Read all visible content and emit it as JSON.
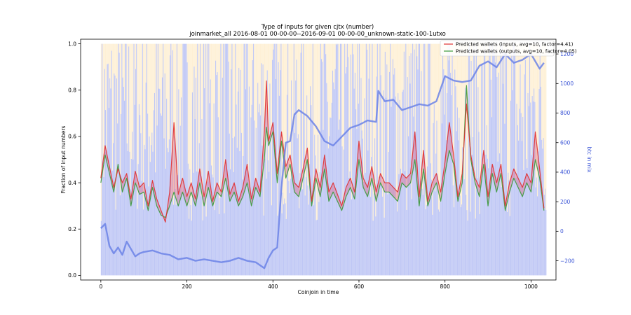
{
  "chart_data": {
    "type": "line",
    "title": "Type of inputs for given cjtx (number)",
    "subtitle": "joinmarket_all 2016-08-01 00-00-00--2016-09-01 00-00-00_unknown-static-100-1utxo",
    "xlabel": "Coinjoin in time",
    "ylabel": "Fraction of input numbers",
    "ylabel_right": "btc in mix",
    "xlim": [
      -47,
      1058
    ],
    "ylim": [
      -0.02,
      1.02
    ],
    "ylim_right": [
      -330,
      1300
    ],
    "x_ticks": [
      "0",
      "200",
      "400",
      "600",
      "800",
      "1000"
    ],
    "y_ticks": [
      "0.0",
      "0.2",
      "0.4",
      "0.6",
      "0.8",
      "1.0"
    ],
    "y_right_ticks": [
      "−200",
      "0",
      "200",
      "400",
      "600",
      "800",
      "1000",
      "1200"
    ],
    "grid": false,
    "legend_position": "top-right",
    "n_transactions": 1035,
    "background_bars": {
      "description": "per-coinjoin stacked fraction bars (blue = fresh inputs, orange = remixed inputs)",
      "colors": [
        "#aab4f2",
        "#fde4b3"
      ]
    },
    "series": [
      {
        "name": "Predicted wallets (inputs, avg=10, factor=4.41)",
        "color": "#e03030",
        "axis": "left",
        "x": [
          0,
          10,
          20,
          30,
          40,
          50,
          60,
          70,
          80,
          90,
          100,
          110,
          120,
          130,
          140,
          150,
          160,
          170,
          180,
          190,
          200,
          210,
          220,
          230,
          240,
          250,
          260,
          270,
          280,
          290,
          300,
          310,
          320,
          330,
          340,
          350,
          360,
          370,
          380,
          385,
          390,
          400,
          410,
          420,
          430,
          440,
          450,
          460,
          470,
          480,
          490,
          500,
          510,
          520,
          530,
          540,
          550,
          560,
          570,
          580,
          590,
          600,
          610,
          620,
          630,
          640,
          650,
          660,
          670,
          680,
          690,
          700,
          710,
          720,
          730,
          740,
          750,
          760,
          770,
          780,
          790,
          800,
          810,
          820,
          830,
          840,
          850,
          860,
          870,
          880,
          890,
          900,
          910,
          920,
          930,
          940,
          950,
          960,
          970,
          980,
          990,
          1000,
          1010,
          1020,
          1030
        ],
        "y": [
          0.42,
          0.56,
          0.47,
          0.38,
          0.46,
          0.4,
          0.44,
          0.33,
          0.45,
          0.38,
          0.4,
          0.3,
          0.41,
          0.33,
          0.28,
          0.23,
          0.36,
          0.66,
          0.35,
          0.42,
          0.34,
          0.4,
          0.33,
          0.46,
          0.34,
          0.45,
          0.32,
          0.4,
          0.36,
          0.5,
          0.35,
          0.4,
          0.32,
          0.38,
          0.48,
          0.33,
          0.42,
          0.36,
          0.62,
          0.84,
          0.58,
          0.66,
          0.44,
          0.62,
          0.47,
          0.52,
          0.4,
          0.38,
          0.46,
          0.55,
          0.32,
          0.46,
          0.38,
          0.52,
          0.36,
          0.4,
          0.35,
          0.3,
          0.38,
          0.42,
          0.36,
          0.58,
          0.42,
          0.38,
          0.47,
          0.36,
          0.44,
          0.4,
          0.4,
          0.38,
          0.36,
          0.44,
          0.42,
          0.44,
          0.62,
          0.34,
          0.54,
          0.32,
          0.4,
          0.44,
          0.36,
          0.49,
          0.66,
          0.52,
          0.34,
          0.44,
          0.74,
          0.52,
          0.42,
          0.38,
          0.54,
          0.34,
          0.48,
          0.4,
          0.48,
          0.3,
          0.4,
          0.46,
          0.42,
          0.38,
          0.44,
          0.4,
          0.62,
          0.46,
          0.29
        ]
      },
      {
        "name": "Predicted wallets (outputs, avg=10, factor=4.05)",
        "color": "#3a9a3a",
        "axis": "left",
        "x": [
          0,
          10,
          20,
          30,
          40,
          50,
          60,
          70,
          80,
          90,
          100,
          110,
          120,
          130,
          140,
          150,
          160,
          170,
          180,
          190,
          200,
          210,
          220,
          230,
          240,
          250,
          260,
          270,
          280,
          290,
          300,
          310,
          320,
          330,
          340,
          350,
          360,
          370,
          380,
          385,
          390,
          400,
          410,
          420,
          430,
          440,
          450,
          460,
          470,
          480,
          490,
          500,
          510,
          520,
          530,
          540,
          550,
          560,
          570,
          580,
          590,
          600,
          610,
          620,
          630,
          640,
          650,
          660,
          670,
          680,
          690,
          700,
          710,
          720,
          730,
          740,
          750,
          760,
          770,
          780,
          790,
          800,
          810,
          820,
          830,
          840,
          850,
          860,
          870,
          880,
          890,
          900,
          910,
          920,
          930,
          940,
          950,
          960,
          970,
          980,
          990,
          1000,
          1010,
          1020,
          1030
        ],
        "y": [
          0.4,
          0.52,
          0.44,
          0.36,
          0.48,
          0.36,
          0.42,
          0.3,
          0.4,
          0.35,
          0.36,
          0.28,
          0.38,
          0.3,
          0.26,
          0.25,
          0.3,
          0.36,
          0.3,
          0.36,
          0.3,
          0.36,
          0.3,
          0.4,
          0.3,
          0.38,
          0.3,
          0.36,
          0.34,
          0.42,
          0.32,
          0.36,
          0.3,
          0.34,
          0.4,
          0.3,
          0.38,
          0.34,
          0.5,
          0.64,
          0.56,
          0.62,
          0.4,
          0.58,
          0.42,
          0.48,
          0.36,
          0.34,
          0.42,
          0.5,
          0.3,
          0.42,
          0.34,
          0.46,
          0.32,
          0.36,
          0.32,
          0.28,
          0.34,
          0.38,
          0.33,
          0.5,
          0.38,
          0.34,
          0.42,
          0.32,
          0.4,
          0.36,
          0.36,
          0.34,
          0.32,
          0.4,
          0.38,
          0.4,
          0.5,
          0.3,
          0.46,
          0.3,
          0.36,
          0.4,
          0.32,
          0.44,
          0.54,
          0.48,
          0.32,
          0.4,
          0.82,
          0.5,
          0.4,
          0.34,
          0.48,
          0.3,
          0.44,
          0.36,
          0.44,
          0.28,
          0.36,
          0.42,
          0.38,
          0.34,
          0.4,
          0.36,
          0.5,
          0.42,
          0.28
        ]
      },
      {
        "name": "btc in mix",
        "color": "#6b82e6",
        "axis": "right",
        "x": [
          0,
          10,
          20,
          30,
          40,
          50,
          60,
          70,
          80,
          90,
          100,
          120,
          140,
          160,
          180,
          200,
          220,
          240,
          260,
          280,
          300,
          320,
          340,
          360,
          380,
          390,
          400,
          410,
          420,
          430,
          440,
          450,
          460,
          480,
          500,
          520,
          540,
          560,
          580,
          600,
          620,
          640,
          645,
          660,
          680,
          700,
          720,
          740,
          760,
          780,
          800,
          820,
          840,
          860,
          880,
          900,
          920,
          940,
          960,
          980,
          1000,
          1020,
          1030
        ],
        "y": [
          20,
          50,
          -100,
          -150,
          -110,
          -160,
          -70,
          -120,
          -170,
          -150,
          -140,
          -130,
          -150,
          -160,
          -190,
          -180,
          -200,
          -190,
          -200,
          -210,
          -200,
          -180,
          -200,
          -210,
          -250,
          -180,
          -130,
          -110,
          300,
          600,
          610,
          790,
          820,
          780,
          710,
          610,
          580,
          640,
          700,
          720,
          750,
          740,
          950,
          880,
          890,
          820,
          840,
          860,
          850,
          880,
          1050,
          1020,
          1010,
          1020,
          1120,
          1150,
          1110,
          1200,
          1140,
          1160,
          1200,
          1100,
          1140
        ]
      }
    ]
  }
}
